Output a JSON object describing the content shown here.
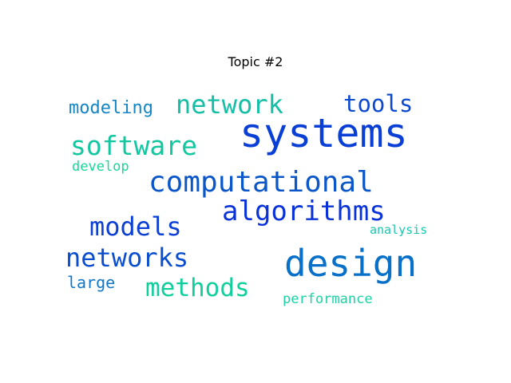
{
  "title": "Topic #2",
  "chart_data": {
    "type": "wordcloud",
    "title": "Topic #2",
    "words": [
      {
        "text": "systems",
        "weight": 1.0,
        "color": "#0a3fd6"
      },
      {
        "text": "design",
        "weight": 0.92,
        "color": "#0870c8"
      },
      {
        "text": "computational",
        "weight": 0.73,
        "color": "#0b57c9"
      },
      {
        "text": "algorithms",
        "weight": 0.68,
        "color": "#0a32d9"
      },
      {
        "text": "software",
        "weight": 0.66,
        "color": "#12c7a0"
      },
      {
        "text": "network",
        "weight": 0.65,
        "color": "#14bfa6"
      },
      {
        "text": "models",
        "weight": 0.64,
        "color": "#0c3fd4"
      },
      {
        "text": "networks",
        "weight": 0.64,
        "color": "#0a4ecf"
      },
      {
        "text": "methods",
        "weight": 0.62,
        "color": "#10cf9c"
      },
      {
        "text": "tools",
        "weight": 0.58,
        "color": "#0d49cf"
      },
      {
        "text": "modeling",
        "weight": 0.44,
        "color": "#1486c4"
      },
      {
        "text": "large",
        "weight": 0.4,
        "color": "#1277c6"
      },
      {
        "text": "develop",
        "weight": 0.34,
        "color": "#19d69a"
      },
      {
        "text": "performance",
        "weight": 0.34,
        "color": "#1cd2a4"
      },
      {
        "text": "analysis",
        "weight": 0.3,
        "color": "#1ac7b0"
      }
    ]
  }
}
